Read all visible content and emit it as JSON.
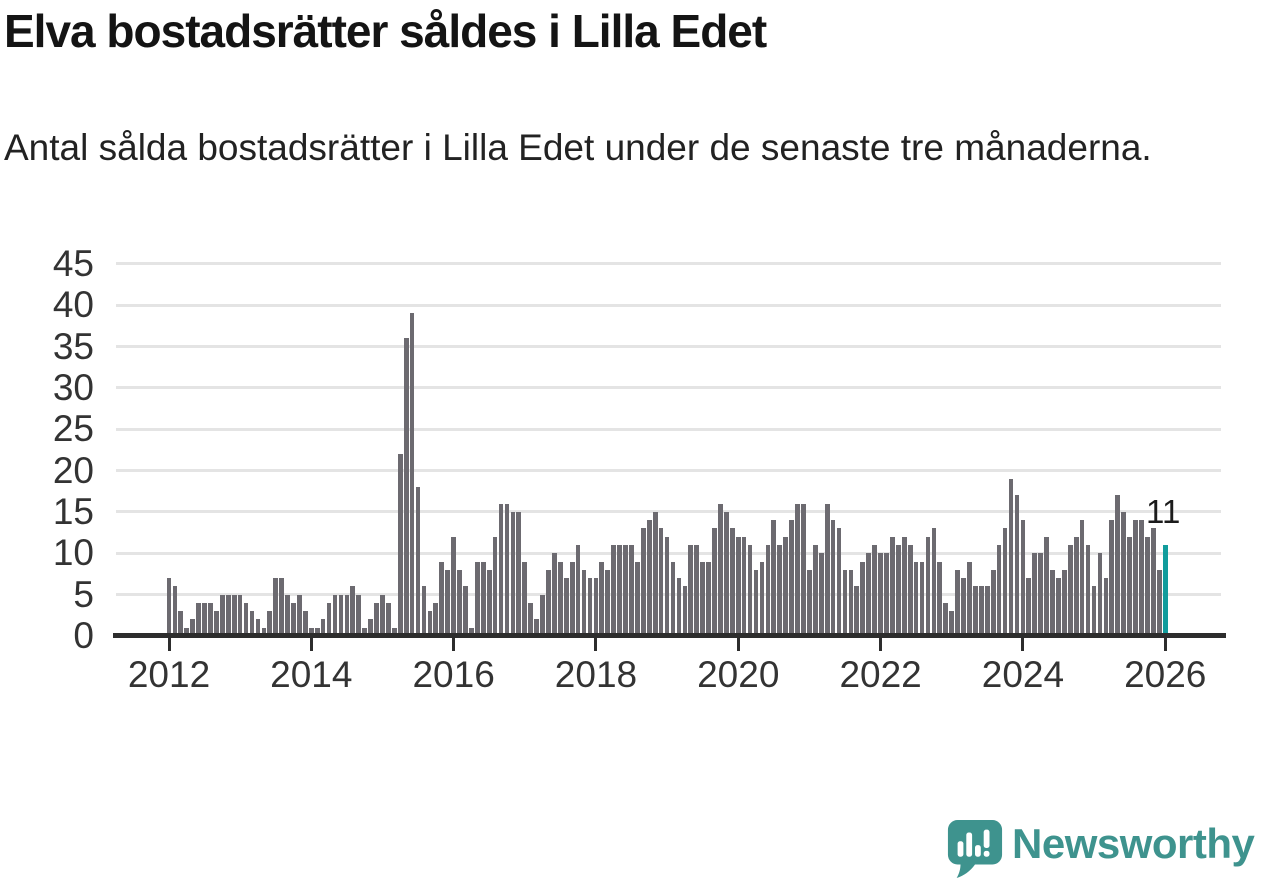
{
  "header": {
    "title": "Elva bostadsrätter såldes i Lilla Edet",
    "subtitle": "Antal sålda bostadsrätter i Lilla Edet under de senaste tre månaderna."
  },
  "annotation": {
    "value_label": "11"
  },
  "branding": {
    "wordmark": "Newsworthy",
    "color": "#3E938E",
    "icon": "speech-bubble-bar-chart-icon"
  },
  "colors": {
    "bar": "#6C6A70",
    "highlight": "#119C9C",
    "grid": "#E4E4E4",
    "axis": "#2D2D2D",
    "tick_text": "#333333",
    "title_text": "#141414"
  },
  "chart_data": {
    "type": "bar",
    "title": "Elva bostadsrätter såldes i Lilla Edet",
    "description": "Antal sålda bostadsrätter i Lilla Edet under de senaste tre månaderna.",
    "frequency": "monthly",
    "x_start": "2012-01",
    "x_end": "2026-01",
    "x_tick_labels": [
      "2012",
      "2014",
      "2016",
      "2018",
      "2020",
      "2022",
      "2024",
      "2026"
    ],
    "y_ticks": [
      0,
      5,
      10,
      15,
      20,
      25,
      30,
      35,
      40,
      45
    ],
    "ylim": [
      0,
      45
    ],
    "grid": "horizontal",
    "legend": "none",
    "highlight_index": 168,
    "highlight_label": "11",
    "values": [
      7,
      6,
      3,
      1,
      2,
      4,
      4,
      4,
      3,
      5,
      5,
      5,
      5,
      4,
      3,
      2,
      1,
      3,
      7,
      7,
      5,
      4,
      5,
      3,
      1,
      1,
      2,
      4,
      5,
      5,
      5,
      6,
      5,
      1,
      2,
      4,
      5,
      4,
      1,
      22,
      36,
      39,
      18,
      6,
      3,
      4,
      9,
      8,
      12,
      8,
      6,
      1,
      9,
      9,
      8,
      12,
      16,
      16,
      15,
      15,
      9,
      4,
      2,
      5,
      8,
      10,
      9,
      7,
      9,
      11,
      8,
      7,
      7,
      9,
      8,
      11,
      11,
      11,
      11,
      9,
      13,
      14,
      15,
      13,
      12,
      9,
      7,
      6,
      11,
      11,
      9,
      9,
      13,
      16,
      15,
      13,
      12,
      12,
      11,
      8,
      9,
      11,
      14,
      11,
      12,
      14,
      16,
      16,
      8,
      11,
      10,
      16,
      14,
      13,
      8,
      8,
      6,
      9,
      10,
      11,
      10,
      10,
      12,
      11,
      12,
      11,
      9,
      9,
      12,
      13,
      9,
      4,
      3,
      8,
      7,
      9,
      6,
      6,
      6,
      8,
      11,
      13,
      19,
      17,
      14,
      7,
      10,
      10,
      12,
      8,
      7,
      8,
      11,
      12,
      14,
      11,
      6,
      10,
      7,
      14,
      17,
      15,
      12,
      14,
      14,
      12,
      13,
      8,
      11
    ]
  }
}
